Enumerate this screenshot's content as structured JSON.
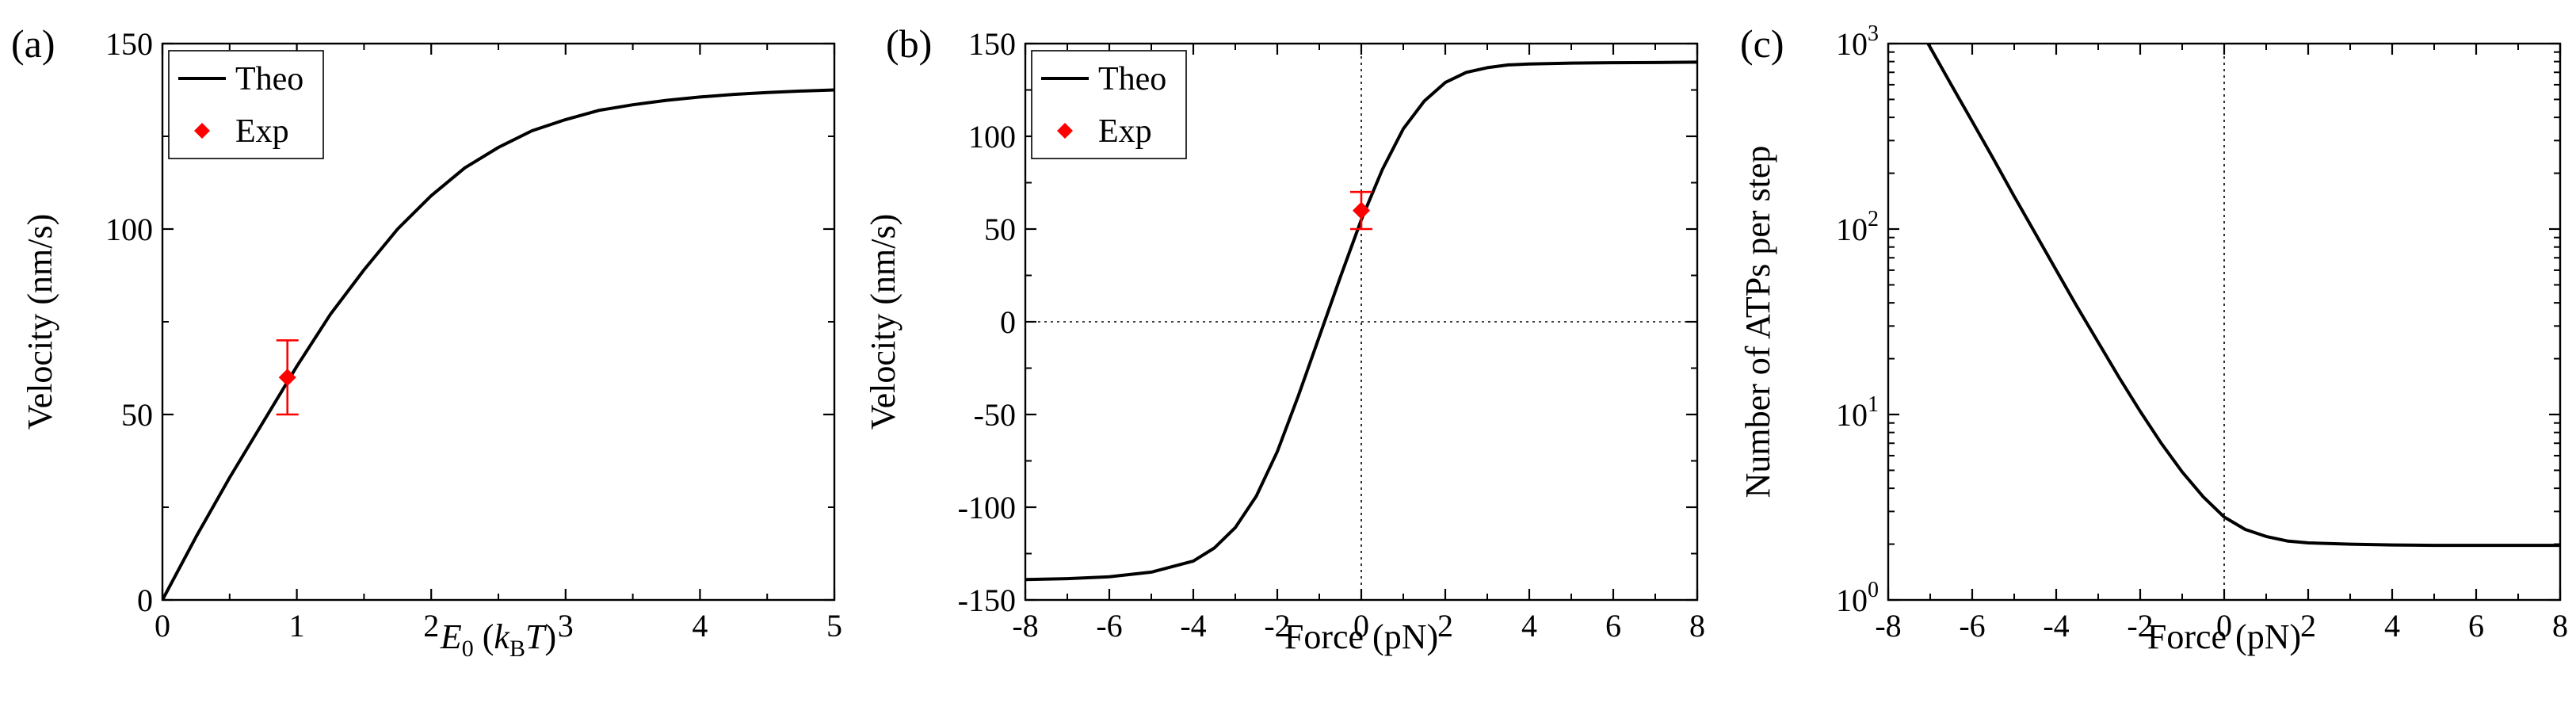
{
  "chart_data": [
    {
      "type": "line",
      "panel_label": "(a)",
      "xlabel": {
        "main": "E",
        "sub": "0",
        "paren_open": " (",
        "k": "k",
        "k_sub": "B",
        "T": "T",
        "paren_close": ")"
      },
      "ylabel": "Velocity (nm/s)",
      "xlim": [
        0,
        5
      ],
      "ylim": [
        0,
        150
      ],
      "xticks": [
        0,
        1,
        2,
        3,
        4,
        5
      ],
      "yticks": [
        0,
        50,
        100,
        150
      ],
      "xtick_labels": [
        "0",
        "1",
        "2",
        "3",
        "4",
        "5"
      ],
      "ytick_labels": [
        "0",
        "50",
        "100",
        "150"
      ],
      "legend": {
        "position": "top-left",
        "entries": [
          {
            "label": "Theo",
            "marker": "line"
          },
          {
            "label": "Exp",
            "marker": "diamond"
          }
        ]
      },
      "series": [
        {
          "name": "Theo",
          "x": [
            0,
            0.25,
            0.5,
            0.75,
            1.0,
            1.25,
            1.5,
            1.75,
            2.0,
            2.25,
            2.5,
            2.75,
            3.0,
            3.25,
            3.5,
            3.75,
            4.0,
            4.25,
            4.5,
            4.75,
            5.0
          ],
          "y": [
            0,
            17,
            33,
            48,
            63,
            77,
            89,
            100,
            109,
            116.5,
            122,
            126.5,
            129.5,
            132,
            133.5,
            134.7,
            135.6,
            136.3,
            136.8,
            137.2,
            137.5
          ]
        },
        {
          "name": "Exp",
          "x": [
            0.93
          ],
          "y": [
            60
          ],
          "yerr": [
            10
          ]
        }
      ],
      "colors": {
        "theo": "#000000",
        "exp": "#ff0000"
      }
    },
    {
      "type": "line",
      "panel_label": "(b)",
      "xlabel": "Force (pN)",
      "ylabel": "Velocity (nm/s)",
      "xlim": [
        -8,
        8
      ],
      "ylim": [
        -150,
        150
      ],
      "xticks": [
        -8,
        -6,
        -4,
        -2,
        0,
        2,
        4,
        6,
        8
      ],
      "yticks": [
        -150,
        -100,
        -50,
        0,
        50,
        100,
        150
      ],
      "xtick_labels": [
        "-8",
        "-6",
        "-4",
        "-2",
        "0",
        "2",
        "4",
        "6",
        "8"
      ],
      "ytick_labels": [
        "-150",
        "-100",
        "-50",
        "0",
        "50",
        "100",
        "150"
      ],
      "reference_lines": {
        "x": 0,
        "y": 0,
        "style": "dotted"
      },
      "legend": {
        "position": "top-left",
        "entries": [
          {
            "label": "Theo",
            "marker": "line"
          },
          {
            "label": "Exp",
            "marker": "diamond"
          }
        ]
      },
      "series": [
        {
          "name": "Theo",
          "x": [
            -8,
            -7,
            -6,
            -5,
            -4,
            -3.5,
            -3,
            -2.5,
            -2,
            -1.5,
            -1,
            -0.5,
            0,
            0.5,
            1,
            1.5,
            2,
            2.5,
            3,
            3.5,
            4,
            5,
            6,
            7,
            8
          ],
          "y": [
            -139,
            -138.5,
            -137.5,
            -135,
            -129,
            -122,
            -111,
            -94,
            -70,
            -40,
            -8,
            24,
            55,
            82,
            104,
            119,
            129,
            134.5,
            137,
            138.5,
            139,
            139.5,
            139.7,
            139.8,
            140
          ]
        },
        {
          "name": "Exp",
          "x": [
            0
          ],
          "y": [
            60
          ],
          "yerr": [
            10
          ]
        }
      ],
      "colors": {
        "theo": "#000000",
        "exp": "#ff0000"
      }
    },
    {
      "type": "line",
      "panel_label": "(c)",
      "xlabel": "Force (pN)",
      "ylabel": "Number of ATPs per step",
      "xlim": [
        -8,
        8
      ],
      "ylim": [
        1,
        1000
      ],
      "yscale": "log",
      "xticks": [
        -8,
        -6,
        -4,
        -2,
        0,
        2,
        4,
        6,
        8
      ],
      "yticks": [
        1,
        10,
        100,
        1000
      ],
      "xtick_labels": [
        "-8",
        "-6",
        "-4",
        "-2",
        "0",
        "2",
        "4",
        "6",
        "8"
      ],
      "ytick_labels": [
        {
          "base": "10",
          "exp": "0"
        },
        {
          "base": "10",
          "exp": "1"
        },
        {
          "base": "10",
          "exp": "2"
        },
        {
          "base": "10",
          "exp": "3"
        }
      ],
      "reference_lines": {
        "x": 0,
        "style": "dotted"
      },
      "series": [
        {
          "name": "Theo",
          "x": [
            -7.05,
            -6.5,
            -6,
            -5.5,
            -5,
            -4.5,
            -4,
            -3.5,
            -3,
            -2.5,
            -2,
            -1.5,
            -1,
            -0.5,
            0,
            0.5,
            1,
            1.5,
            2,
            3,
            4,
            5,
            6,
            7,
            8
          ],
          "y": [
            1000,
            600,
            380,
            240,
            150,
            95,
            60,
            38,
            24.5,
            15.8,
            10.4,
            7.0,
            4.9,
            3.6,
            2.8,
            2.4,
            2.2,
            2.08,
            2.03,
            2.0,
            1.98,
            1.97,
            1.97,
            1.97,
            1.97
          ]
        }
      ],
      "colors": {
        "theo": "#000000"
      }
    }
  ]
}
